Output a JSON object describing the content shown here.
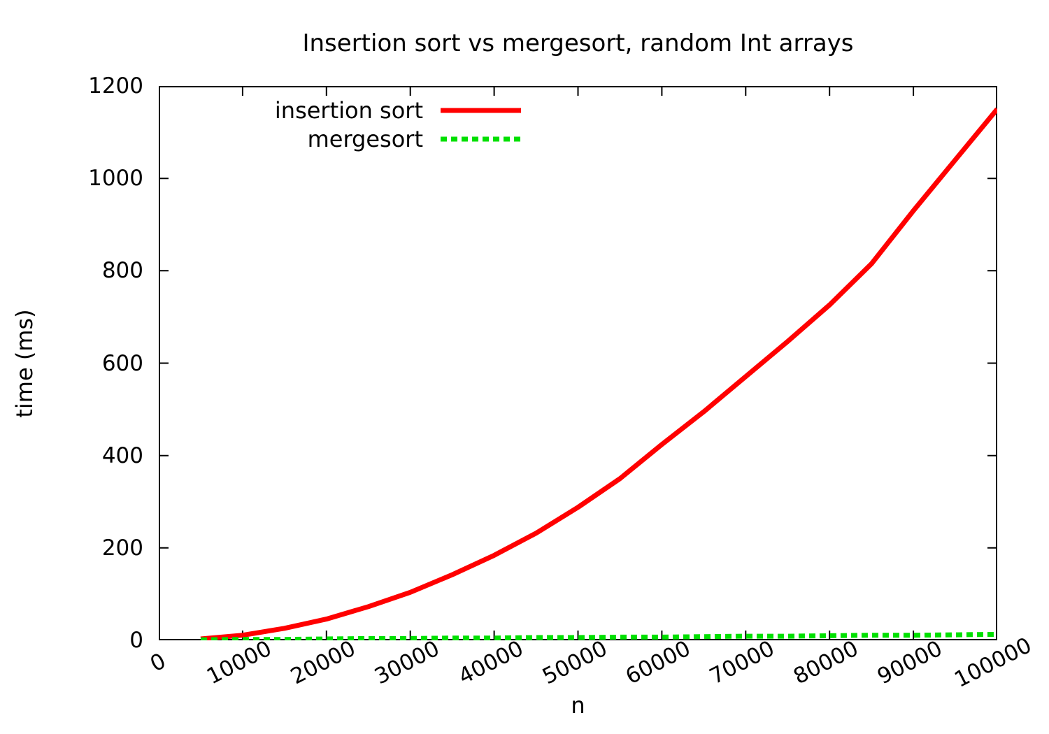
{
  "chart_data": {
    "type": "line",
    "title": "Insertion sort vs mergesort, random Int arrays",
    "xlabel": "n",
    "ylabel": "time (ms)",
    "xlim": [
      0,
      100000
    ],
    "ylim": [
      0,
      1200
    ],
    "x_ticks": [
      0,
      10000,
      20000,
      30000,
      40000,
      50000,
      60000,
      70000,
      80000,
      90000,
      100000
    ],
    "y_ticks": [
      0,
      200,
      400,
      600,
      800,
      1000,
      1200
    ],
    "grid": false,
    "legend_position": "top-left-inside",
    "background_color": "#ffffff",
    "axis_color": "#000000",
    "x": [
      5000,
      10000,
      15000,
      20000,
      25000,
      30000,
      35000,
      40000,
      45000,
      50000,
      55000,
      60000,
      65000,
      70000,
      75000,
      80000,
      85000,
      90000,
      95000,
      100000
    ],
    "series": [
      {
        "name": "insertion sort",
        "color": "#ff0000",
        "style": "solid",
        "line_width": 7,
        "values": [
          3,
          11,
          26,
          46,
          73,
          104,
          142,
          184,
          232,
          288,
          350,
          424,
          495,
          571,
          647,
          726,
          815,
          930,
          1040,
          1150
        ]
      },
      {
        "name": "mergesort",
        "color": "#00e000",
        "style": "dashed",
        "line_width": 7,
        "values": [
          1,
          2,
          2,
          3,
          4,
          4,
          5,
          5,
          6,
          6,
          7,
          7,
          8,
          9,
          9,
          10,
          11,
          11,
          12,
          13
        ]
      }
    ]
  }
}
